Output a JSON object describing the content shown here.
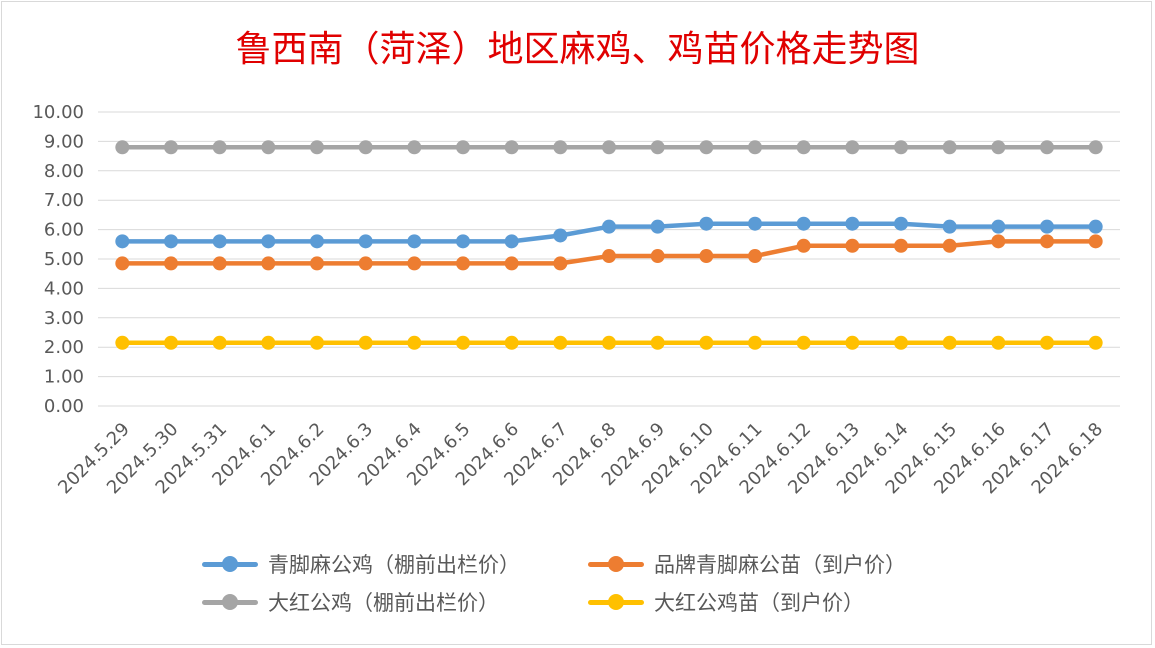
{
  "chart_data": {
    "type": "line",
    "title": "鲁西南（菏泽）地区麻鸡、鸡苗价格走势图",
    "categories": [
      "2024.5.29",
      "2024.5.30",
      "2024.5.31",
      "2024.6.1",
      "2024.6.2",
      "2024.6.3",
      "2024.6.4",
      "2024.6.5",
      "2024.6.6",
      "2024.6.7",
      "2024.6.8",
      "2024.6.9",
      "2024.6.10",
      "2024.6.11",
      "2024.6.12",
      "2024.6.13",
      "2024.6.14",
      "2024.6.15",
      "2024.6.16",
      "2024.6.17",
      "2024.6.18"
    ],
    "ylim": [
      0,
      10
    ],
    "yticks": [
      "0.00",
      "1.00",
      "2.00",
      "3.00",
      "4.00",
      "5.00",
      "6.00",
      "7.00",
      "8.00",
      "9.00",
      "10.00"
    ],
    "grid": true,
    "legend_position": "bottom",
    "series": [
      {
        "name": "青脚麻公鸡（棚前出栏价）",
        "color": "#5b9bd5",
        "values": [
          5.6,
          5.6,
          5.6,
          5.6,
          5.6,
          5.6,
          5.6,
          5.6,
          5.6,
          5.8,
          6.1,
          6.1,
          6.2,
          6.2,
          6.2,
          6.2,
          6.2,
          6.1,
          6.1,
          6.1,
          6.1
        ]
      },
      {
        "name": "品牌青脚麻公苗（到户价）",
        "color": "#ed7d31",
        "values": [
          4.85,
          4.85,
          4.85,
          4.85,
          4.85,
          4.85,
          4.85,
          4.85,
          4.85,
          4.85,
          5.1,
          5.1,
          5.1,
          5.1,
          5.45,
          5.45,
          5.45,
          5.45,
          5.6,
          5.6,
          5.6
        ]
      },
      {
        "name": "大红公鸡（棚前出栏价）",
        "color": "#a5a5a5",
        "values": [
          8.8,
          8.8,
          8.8,
          8.8,
          8.8,
          8.8,
          8.8,
          8.8,
          8.8,
          8.8,
          8.8,
          8.8,
          8.8,
          8.8,
          8.8,
          8.8,
          8.8,
          8.8,
          8.8,
          8.8,
          8.8
        ]
      },
      {
        "name": "大红公鸡苗（到户价）",
        "color": "#ffc000",
        "values": [
          2.15,
          2.15,
          2.15,
          2.15,
          2.15,
          2.15,
          2.15,
          2.15,
          2.15,
          2.15,
          2.15,
          2.15,
          2.15,
          2.15,
          2.15,
          2.15,
          2.15,
          2.15,
          2.15,
          2.15,
          2.15
        ]
      }
    ]
  }
}
